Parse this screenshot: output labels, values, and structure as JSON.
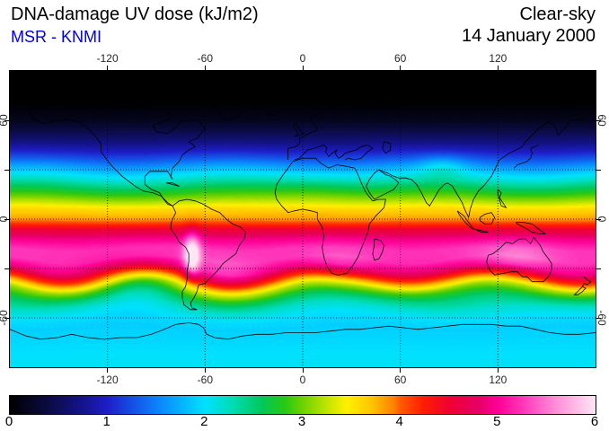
{
  "header": {
    "title": "DNA-damage UV dose (kJ/m2)",
    "source": "MSR - KNMI",
    "condition": "Clear-sky",
    "date": "14 January 2000"
  },
  "colors": {
    "title_text": "#000000",
    "source_text": "#0000e6",
    "tick_text": "#262626",
    "map_border": "#000000"
  },
  "chart_data": {
    "type": "heatmap",
    "title": "DNA-damage UV dose (kJ/m2)",
    "dataset": "MSR - KNMI",
    "condition": "Clear-sky",
    "date": "14 January 2000",
    "units": "kJ/m2",
    "projection": "equirectangular",
    "lon_range": [
      -180,
      180
    ],
    "lat_range": [
      -90,
      90
    ],
    "lon_ticks": [
      -120,
      -60,
      0,
      60,
      120
    ],
    "lat_ticks": [
      60,
      0,
      -60
    ],
    "grid_lat_lines": [
      60,
      30,
      0,
      -30,
      -60
    ],
    "grid_lon_lines": [
      -120,
      -60,
      0,
      60,
      120
    ],
    "colorbar": {
      "min": 0,
      "max": 6,
      "ticks": [
        0,
        1,
        2,
        3,
        4,
        5,
        6
      ],
      "stops": [
        [
          0.0,
          "#000000"
        ],
        [
          0.06,
          "#0a0a3c"
        ],
        [
          0.125,
          "#14148c"
        ],
        [
          0.167,
          "#1e1ec8"
        ],
        [
          0.21,
          "#1450e6"
        ],
        [
          0.26,
          "#0a8cff"
        ],
        [
          0.333,
          "#00e1ff"
        ],
        [
          0.38,
          "#00dcb4"
        ],
        [
          0.43,
          "#00c85a"
        ],
        [
          0.47,
          "#28c814"
        ],
        [
          0.5,
          "#6ed200"
        ],
        [
          0.545,
          "#c8e600"
        ],
        [
          0.575,
          "#fff000"
        ],
        [
          0.615,
          "#ffc800"
        ],
        [
          0.655,
          "#ff8200"
        ],
        [
          0.667,
          "#ff5a00"
        ],
        [
          0.705,
          "#ff1e00"
        ],
        [
          0.75,
          "#f00032"
        ],
        [
          0.8,
          "#e60064"
        ],
        [
          0.833,
          "#ff0096"
        ],
        [
          0.88,
          "#ff3cbe"
        ],
        [
          0.93,
          "#ff8cd7"
        ],
        [
          1.0,
          "#ffe6f5"
        ]
      ]
    },
    "zonal_profile": {
      "lat": [
        -90,
        -80,
        -72,
        -66,
        -60,
        -54,
        -48,
        -42,
        -36,
        -30,
        -24,
        -18,
        -12,
        -6,
        0,
        6,
        12,
        18,
        24,
        30,
        36,
        42,
        48,
        54,
        60,
        66,
        72,
        80,
        90
      ],
      "dose_kj_m2": [
        2.05,
        2.0,
        1.95,
        1.92,
        2.0,
        2.2,
        2.6,
        3.2,
        4.1,
        4.9,
        5.25,
        5.25,
        4.95,
        4.5,
        3.85,
        3.6,
        3.1,
        2.65,
        2.2,
        1.8,
        1.35,
        0.95,
        0.65,
        0.4,
        0.2,
        0.08,
        0.02,
        0.0,
        0.0
      ]
    },
    "anomalies": [
      {
        "name": "andes-altiplano-max",
        "lon": -68,
        "lat": -22,
        "amp": 1.1,
        "slon": 3.5,
        "slat": 9
      },
      {
        "name": "southern-africa",
        "lon": 22,
        "lat": -31,
        "amp": 0.35,
        "slon": 13,
        "slat": 7
      },
      {
        "name": "australia",
        "lon": 131,
        "lat": -26,
        "amp": 0.35,
        "slon": 16,
        "slat": 8
      },
      {
        "name": "south-atlantic-extension",
        "lon": -55,
        "lat": -38,
        "amp": 0.45,
        "slon": 18,
        "slat": 8
      },
      {
        "name": "se-pacific-dip",
        "lon": -108,
        "lat": -38,
        "amp": -0.45,
        "slon": 20,
        "slat": 9
      },
      {
        "name": "s-indian-ocean-dip",
        "lon": 72,
        "lat": -42,
        "amp": -0.3,
        "slon": 22,
        "slat": 8
      },
      {
        "name": "sahara-boost",
        "lon": 8,
        "lat": 18,
        "amp": 0.2,
        "slon": 22,
        "slat": 8
      },
      {
        "name": "tibet-boost",
        "lon": 86,
        "lat": 32,
        "amp": 0.3,
        "slon": 10,
        "slat": 5
      }
    ],
    "waves": [
      {
        "lat_center": -37,
        "lat_sigma": 12,
        "amp_deg": 4.5,
        "lon_wavelength_deg": 105,
        "lon_phase_deg": 40
      },
      {
        "lat_center": -58,
        "lat_sigma": 8,
        "amp_deg": 2.5,
        "lon_wavelength_deg": 140,
        "lon_phase_deg": -80
      },
      {
        "lat_center": 25,
        "lat_sigma": 13,
        "amp_deg": 1.5,
        "lon_wavelength_deg": 125,
        "lon_phase_deg": -15
      }
    ]
  }
}
